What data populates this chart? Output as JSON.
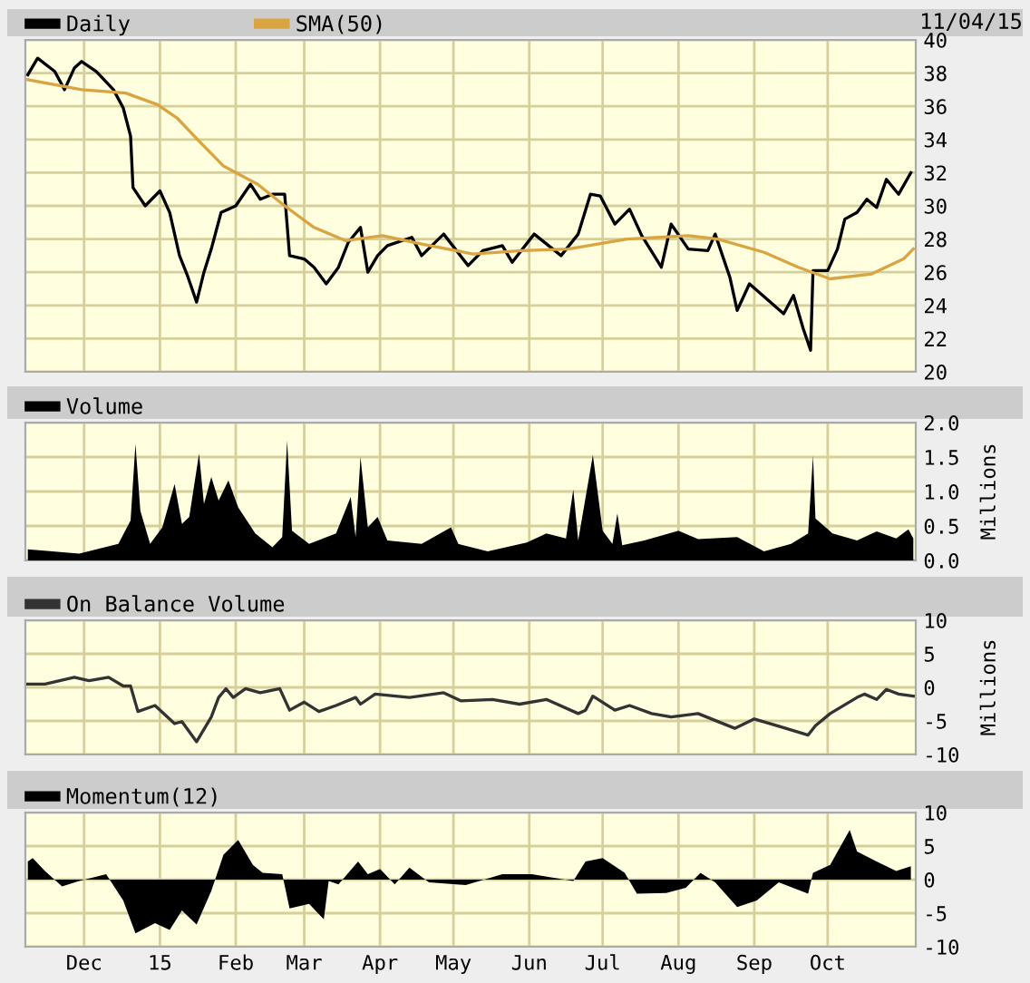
{
  "chart_data": [
    {
      "type": "line",
      "xlim": [
        "2014-11-07",
        "2015-11-06"
      ],
      "xticks": [
        {
          "value": "2014-12-01",
          "label": null
        },
        {
          "value": "2015-01-01",
          "label": null
        },
        {
          "value": "2015-02-01",
          "label": null
        },
        {
          "value": "2015-03-01",
          "label": null
        },
        {
          "value": "2015-04-01",
          "label": null
        },
        {
          "value": "2015-05-01",
          "label": null
        },
        {
          "value": "2015-06-01",
          "label": null
        },
        {
          "value": "2015-07-01",
          "label": null
        },
        {
          "value": "2015-08-01",
          "label": null
        },
        {
          "value": "2015-09-01",
          "label": null
        },
        {
          "value": "2015-10-01",
          "label": null
        }
      ],
      "ylim": [
        20,
        40
      ],
      "yticks": [
        20,
        22,
        24,
        26,
        28,
        30,
        32,
        34,
        36,
        38,
        40
      ],
      "tick_labels": "y",
      "grid": true,
      "legend": "top left",
      "annotations": [
        "11/04/15"
      ],
      "series": [
        {
          "name": "Daily",
          "color": "#000000",
          "x": [
            "2014-11-08",
            "2014-11-12",
            "2014-11-19",
            "2014-11-23",
            "2014-11-27",
            "2014-11-30",
            "2014-12-06",
            "2014-12-13",
            "2014-12-17",
            "2014-12-20",
            "2014-12-21",
            "2014-12-26",
            "2015-01-01",
            "2015-01-05",
            "2015-01-09",
            "2015-01-12",
            "2015-01-16",
            "2015-01-19",
            "2015-01-22",
            "2015-01-26",
            "2015-02-01",
            "2015-02-07",
            "2015-02-11",
            "2015-02-16",
            "2015-02-21",
            "2015-02-23",
            "2015-03-01",
            "2015-03-05",
            "2015-03-10",
            "2015-03-15",
            "2015-03-19",
            "2015-03-24",
            "2015-03-27",
            "2015-03-31",
            "2015-04-04",
            "2015-04-14",
            "2015-04-18",
            "2015-04-27",
            "2015-05-07",
            "2015-05-13",
            "2015-05-21",
            "2015-05-25",
            "2015-06-03",
            "2015-06-14",
            "2015-06-21",
            "2015-06-26",
            "2015-06-30",
            "2015-07-06",
            "2015-07-12",
            "2015-07-17",
            "2015-07-25",
            "2015-07-29",
            "2015-08-05",
            "2015-08-13",
            "2015-08-16",
            "2015-08-22",
            "2015-08-25",
            "2015-08-30",
            "2015-09-06",
            "2015-09-13",
            "2015-09-17",
            "2015-09-21",
            "2015-09-24",
            "2015-09-25",
            "2015-10-01",
            "2015-10-05",
            "2015-10-08",
            "2015-10-13",
            "2015-10-17",
            "2015-10-21",
            "2015-10-25",
            "2015-10-30",
            "2015-11-04"
          ],
          "values": [
            37.9,
            38.9,
            38.1,
            37.0,
            38.3,
            38.7,
            38.1,
            37.0,
            35.9,
            34.2,
            31.1,
            30.0,
            30.9,
            29.6,
            27.0,
            25.9,
            24.2,
            26.0,
            27.4,
            29.6,
            30.0,
            31.3,
            30.4,
            30.7,
            30.7,
            27.0,
            26.8,
            26.3,
            25.3,
            26.3,
            27.8,
            28.7,
            26.0,
            27.0,
            27.6,
            28.1,
            27.0,
            28.3,
            26.4,
            27.3,
            27.6,
            26.6,
            28.3,
            27.0,
            28.3,
            30.7,
            30.6,
            28.9,
            29.8,
            28.2,
            26.3,
            28.9,
            27.4,
            27.3,
            28.3,
            25.7,
            23.7,
            25.3,
            24.4,
            23.5,
            24.6,
            22.6,
            21.3,
            26.1,
            26.1,
            27.4,
            29.2,
            29.6,
            30.4,
            29.9,
            31.6,
            30.7,
            32.0
          ]
        },
        {
          "name": "SMA(50)",
          "color": "#d9a441",
          "x": [
            "2014-11-08",
            "2014-11-30",
            "2014-12-18",
            "2014-12-31",
            "2015-01-08",
            "2015-01-17",
            "2015-01-27",
            "2015-02-10",
            "2015-02-21",
            "2015-03-05",
            "2015-03-18",
            "2015-04-02",
            "2015-04-18",
            "2015-05-09",
            "2015-05-29",
            "2015-06-17",
            "2015-07-11",
            "2015-08-05",
            "2015-08-17",
            "2015-09-05",
            "2015-09-19",
            "2015-10-02",
            "2015-10-19",
            "2015-11-01",
            "2015-11-05"
          ],
          "values": [
            37.6,
            37.0,
            36.8,
            36.1,
            35.3,
            33.9,
            32.4,
            31.3,
            30.0,
            28.7,
            27.9,
            28.2,
            27.7,
            27.1,
            27.3,
            27.4,
            28.0,
            28.2,
            28.0,
            27.2,
            26.3,
            25.6,
            25.9,
            26.8,
            27.4
          ]
        }
      ]
    },
    {
      "type": "area",
      "xlim": [
        "2014-11-07",
        "2015-11-06"
      ],
      "xticks": [
        {
          "value": "2014-12-01",
          "label": null
        },
        {
          "value": "2015-01-01",
          "label": null
        },
        {
          "value": "2015-02-01",
          "label": null
        },
        {
          "value": "2015-03-01",
          "label": null
        },
        {
          "value": "2015-04-01",
          "label": null
        },
        {
          "value": "2015-05-01",
          "label": null
        },
        {
          "value": "2015-06-01",
          "label": null
        },
        {
          "value": "2015-07-01",
          "label": null
        },
        {
          "value": "2015-08-01",
          "label": null
        },
        {
          "value": "2015-09-01",
          "label": null
        },
        {
          "value": "2015-10-01",
          "label": null
        }
      ],
      "ylim": [
        0,
        2
      ],
      "yticks": [
        {
          "value": 0,
          "label": "0.0"
        },
        {
          "value": 0.5,
          "label": "0.5"
        },
        {
          "value": 1,
          "label": "1.0"
        },
        {
          "value": 1.5,
          "label": "1.5"
        },
        {
          "value": 2,
          "label": "2.0"
        }
      ],
      "ylabel": "Millions",
      "tick_labels": "y",
      "grid": true,
      "legend": "top left",
      "series": [
        {
          "name": "Volume",
          "color": "#000000",
          "x": [
            "2014-11-08",
            "2014-11-29",
            "2014-12-15",
            "2014-12-20",
            "2014-12-22",
            "2014-12-24",
            "2014-12-28",
            "2015-01-02",
            "2015-01-07",
            "2015-01-10",
            "2015-01-13",
            "2015-01-17",
            "2015-01-19",
            "2015-01-22",
            "2015-01-25",
            "2015-01-29",
            "2015-02-02",
            "2015-02-09",
            "2015-02-16",
            "2015-02-20",
            "2015-02-22",
            "2015-02-24",
            "2015-03-03",
            "2015-03-14",
            "2015-03-20",
            "2015-03-22",
            "2015-03-24",
            "2015-03-27",
            "2015-03-31",
            "2015-04-04",
            "2015-04-18",
            "2015-04-30",
            "2015-05-03",
            "2015-05-15",
            "2015-05-31",
            "2015-06-08",
            "2015-06-16",
            "2015-06-19",
            "2015-06-21",
            "2015-06-27",
            "2015-07-01",
            "2015-07-05",
            "2015-07-07",
            "2015-07-09",
            "2015-07-18",
            "2015-08-01",
            "2015-08-09",
            "2015-08-25",
            "2015-09-05",
            "2015-09-16",
            "2015-09-23",
            "2015-09-25",
            "2015-09-26",
            "2015-10-03",
            "2015-10-13",
            "2015-10-21",
            "2015-10-29",
            "2015-11-03",
            "2015-11-05"
          ],
          "values": [
            0.16,
            0.1,
            0.24,
            0.58,
            1.69,
            0.72,
            0.24,
            0.48,
            1.11,
            0.53,
            0.63,
            1.55,
            0.82,
            1.21,
            0.87,
            1.16,
            0.77,
            0.39,
            0.19,
            0.34,
            1.74,
            0.43,
            0.24,
            0.39,
            0.92,
            0.34,
            1.5,
            0.48,
            0.63,
            0.29,
            0.24,
            0.48,
            0.24,
            0.13,
            0.26,
            0.39,
            0.32,
            1.03,
            0.29,
            1.53,
            0.43,
            0.24,
            0.68,
            0.22,
            0.29,
            0.43,
            0.31,
            0.34,
            0.13,
            0.24,
            0.39,
            1.52,
            0.61,
            0.39,
            0.29,
            0.42,
            0.32,
            0.45,
            0.32
          ]
        }
      ]
    },
    {
      "type": "line",
      "xlim": [
        "2014-11-07",
        "2015-11-06"
      ],
      "xticks": [
        {
          "value": "2014-12-01",
          "label": null
        },
        {
          "value": "2015-01-01",
          "label": null
        },
        {
          "value": "2015-02-01",
          "label": null
        },
        {
          "value": "2015-03-01",
          "label": null
        },
        {
          "value": "2015-04-01",
          "label": null
        },
        {
          "value": "2015-05-01",
          "label": null
        },
        {
          "value": "2015-06-01",
          "label": null
        },
        {
          "value": "2015-07-01",
          "label": null
        },
        {
          "value": "2015-08-01",
          "label": null
        },
        {
          "value": "2015-09-01",
          "label": null
        },
        {
          "value": "2015-10-01",
          "label": null
        }
      ],
      "ylim": [
        -10,
        10
      ],
      "yticks": [
        -10,
        -5,
        0,
        5,
        10
      ],
      "ylabel": "Millions",
      "tick_labels": "y",
      "grid": true,
      "legend": "top left",
      "series": [
        {
          "name": "On Balance Volume",
          "color": "#333333",
          "x": [
            "2014-11-08",
            "2014-11-15",
            "2014-11-27",
            "2014-12-03",
            "2014-12-11",
            "2014-12-17",
            "2014-12-20",
            "2014-12-23",
            "2014-12-30",
            "2015-01-07",
            "2015-01-10",
            "2015-01-16",
            "2015-01-22",
            "2015-01-25",
            "2015-01-28",
            "2015-01-31",
            "2015-02-05",
            "2015-02-11",
            "2015-02-19",
            "2015-02-23",
            "2015-03-01",
            "2015-03-07",
            "2015-03-14",
            "2015-03-22",
            "2015-03-24",
            "2015-03-30",
            "2015-04-13",
            "2015-04-27",
            "2015-05-04",
            "2015-05-17",
            "2015-05-28",
            "2015-06-08",
            "2015-06-21",
            "2015-06-24",
            "2015-06-27",
            "2015-07-06",
            "2015-07-12",
            "2015-07-21",
            "2015-07-29",
            "2015-08-09",
            "2015-08-24",
            "2015-09-01",
            "2015-09-12",
            "2015-09-23",
            "2015-09-26",
            "2015-10-02",
            "2015-10-13",
            "2015-10-16",
            "2015-10-21",
            "2015-10-25",
            "2015-10-30",
            "2015-11-05"
          ],
          "values": [
            0.5,
            0.5,
            1.5,
            1.0,
            1.5,
            0.2,
            0.2,
            -3.6,
            -2.7,
            -5.4,
            -5.1,
            -8.1,
            -4.4,
            -1.5,
            -0.2,
            -1.5,
            -0.2,
            -0.8,
            -0.2,
            -3.4,
            -2.2,
            -3.6,
            -2.7,
            -1.5,
            -2.5,
            -1.0,
            -1.5,
            -0.8,
            -2.0,
            -1.8,
            -2.5,
            -1.8,
            -3.9,
            -3.4,
            -1.3,
            -3.4,
            -2.7,
            -3.9,
            -4.4,
            -3.9,
            -6.1,
            -4.7,
            -5.9,
            -7.1,
            -5.7,
            -3.9,
            -1.5,
            -1.0,
            -1.8,
            -0.3,
            -1.0,
            -1.3
          ]
        }
      ]
    },
    {
      "type": "area",
      "xlim": [
        "2014-11-07",
        "2015-11-06"
      ],
      "xticks": [
        {
          "value": "2014-12-01",
          "label": "Dec"
        },
        {
          "value": "2015-01-01",
          "label": "15"
        },
        {
          "value": "2015-02-01",
          "label": "Feb"
        },
        {
          "value": "2015-03-01",
          "label": "Mar"
        },
        {
          "value": "2015-04-01",
          "label": "Apr"
        },
        {
          "value": "2015-05-01",
          "label": "May"
        },
        {
          "value": "2015-06-01",
          "label": "Jun"
        },
        {
          "value": "2015-07-01",
          "label": "Jul"
        },
        {
          "value": "2015-08-01",
          "label": "Aug"
        },
        {
          "value": "2015-09-01",
          "label": "Sep"
        },
        {
          "value": "2015-10-01",
          "label": "Oct"
        }
      ],
      "ylim": [
        -10,
        10
      ],
      "yticks": [
        -10,
        -5,
        0,
        5,
        10
      ],
      "grid": true,
      "legend": "top left",
      "series": [
        {
          "name": "Momentum(12)",
          "color": "#000000",
          "x": [
            "2014-11-08",
            "2014-11-10",
            "2014-11-15",
            "2014-11-22",
            "2014-11-29",
            "2014-12-10",
            "2014-12-17",
            "2014-12-22",
            "2014-12-30",
            "2015-01-05",
            "2015-01-10",
            "2015-01-16",
            "2015-01-22",
            "2015-01-27",
            "2015-02-02",
            "2015-02-08",
            "2015-02-12",
            "2015-02-20",
            "2015-02-23",
            "2015-03-03",
            "2015-03-09",
            "2015-03-11",
            "2015-03-15",
            "2015-03-23",
            "2015-03-27",
            "2015-04-01",
            "2015-04-07",
            "2015-04-13",
            "2015-04-21",
            "2015-05-06",
            "2015-05-21",
            "2015-06-02",
            "2015-06-19",
            "2015-06-24",
            "2015-07-01",
            "2015-07-10",
            "2015-07-15",
            "2015-07-27",
            "2015-08-04",
            "2015-08-10",
            "2015-08-16",
            "2015-08-25",
            "2015-09-02",
            "2015-09-11",
            "2015-09-23",
            "2015-09-25",
            "2015-10-02",
            "2015-10-10",
            "2015-10-13",
            "2015-10-21",
            "2015-10-29",
            "2015-11-04"
          ],
          "values": [
            2.7,
            3.2,
            1.3,
            -1.0,
            -0.2,
            0.8,
            -3.1,
            -8.0,
            -6.5,
            -7.5,
            -4.6,
            -6.7,
            -1.7,
            3.7,
            5.9,
            2.2,
            1.0,
            0.8,
            -4.3,
            -3.6,
            -5.9,
            -0.2,
            -0.7,
            2.7,
            0.8,
            1.6,
            -0.7,
            1.8,
            -0.4,
            -0.8,
            0.8,
            0.8,
            -0.2,
            2.7,
            3.2,
            1.0,
            -2.1,
            -2.0,
            -1.2,
            1.0,
            -0.4,
            -4.1,
            -3.1,
            -0.4,
            -2.1,
            1.0,
            2.2,
            7.4,
            4.2,
            2.7,
            1.3,
            2.0
          ]
        }
      ]
    }
  ]
}
